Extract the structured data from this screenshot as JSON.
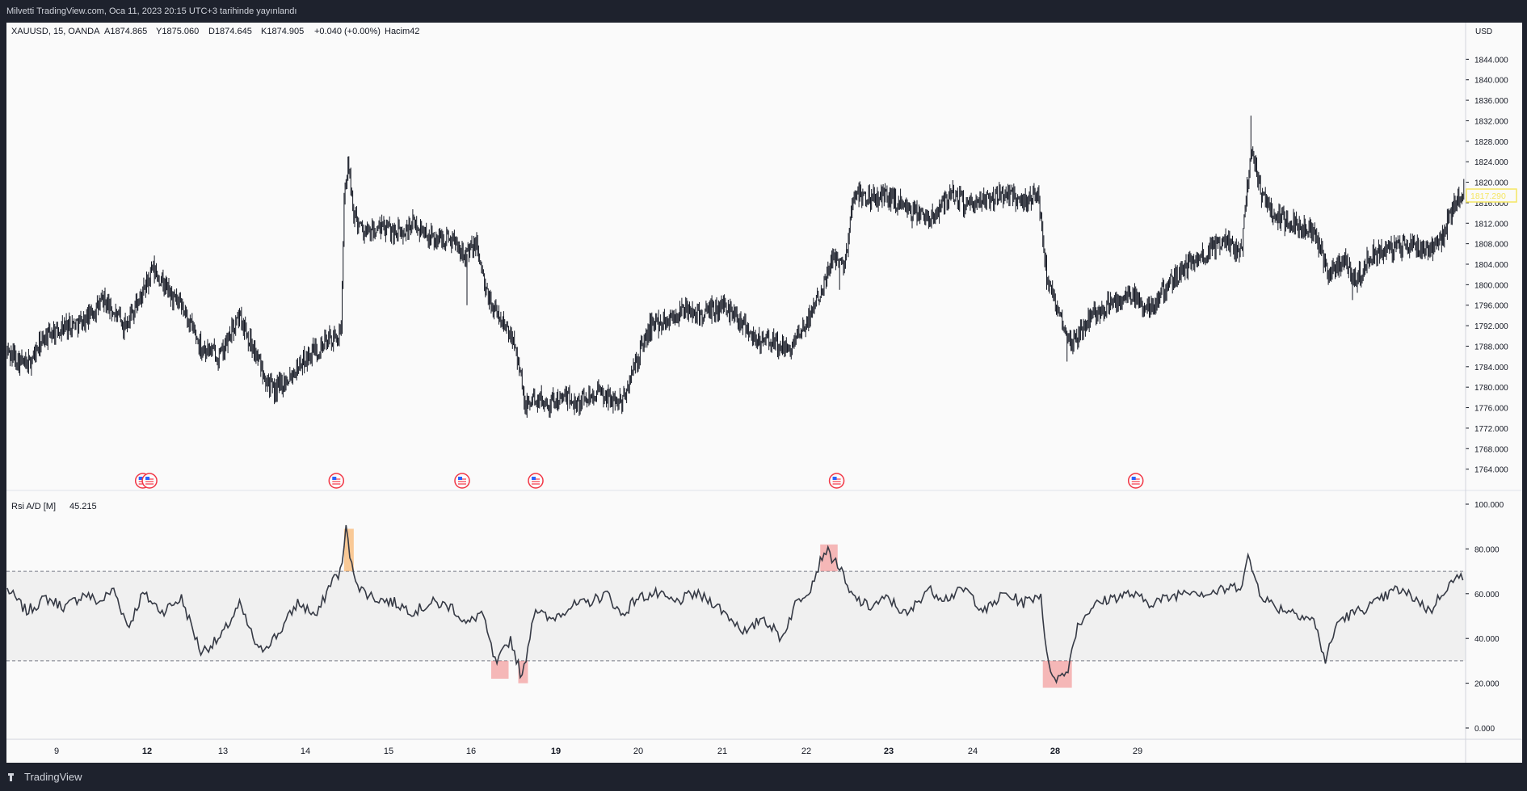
{
  "header": {
    "publish_text": "Milvetti TradingView.com, Oca 11, 2023 20:15 UTC+3 tarihinde yayınlandı"
  },
  "legend": {
    "symbol": "XAUUSD, 15, OANDA",
    "open": "A1874.865",
    "high": "Y1875.060",
    "low": "D1874.645",
    "close": "K1874.905",
    "change": "+0.040 (+0.00%)",
    "volume": "Hacim42"
  },
  "indicator_legend": {
    "name": "Rsi A/D [M]",
    "value": "45.215"
  },
  "price_axis": {
    "currency": "USD",
    "current_price_label": "1817.290"
  },
  "footer": {
    "brand": "TradingView"
  },
  "colors": {
    "candle": "#131722",
    "background": "#fafafa",
    "frame": "#1e222d",
    "rsi_line": "#363a45",
    "overbought": "#f7a043",
    "oversold": "#f08080",
    "current_price": "#f5e663"
  },
  "icon": "us-flag-event-icon",
  "chart_data": [
    {
      "type": "candlestick",
      "ylim": [
        1760,
        1848
      ],
      "y_ticks": [
        "1844.000",
        "1840.000",
        "1836.000",
        "1832.000",
        "1828.000",
        "1824.000",
        "1820.000",
        "1816.000",
        "1812.000",
        "1808.000",
        "1804.000",
        "1800.000",
        "1796.000",
        "1792.000",
        "1788.000",
        "1784.000",
        "1780.000",
        "1776.000",
        "1772.000",
        "1768.000",
        "1764.000"
      ],
      "x_ticks": [
        "9",
        "12",
        "13",
        "14",
        "15",
        "16",
        "19",
        "20",
        "21",
        "22",
        "23",
        "24",
        "28",
        "29"
      ],
      "anchors": [
        [
          0,
          1787
        ],
        [
          20,
          1784
        ],
        [
          40,
          1790
        ],
        [
          60,
          1792
        ],
        [
          80,
          1793
        ],
        [
          100,
          1797
        ],
        [
          120,
          1792
        ],
        [
          140,
          1798
        ],
        [
          150,
          1803
        ],
        [
          165,
          1799
        ],
        [
          185,
          1794
        ],
        [
          200,
          1788
        ],
        [
          220,
          1786
        ],
        [
          240,
          1794
        ],
        [
          260,
          1785
        ],
        [
          275,
          1779
        ],
        [
          290,
          1782
        ],
        [
          310,
          1786
        ],
        [
          330,
          1789
        ],
        [
          345,
          1790
        ],
        [
          348,
          1818
        ],
        [
          352,
          1823
        ],
        [
          358,
          1814
        ],
        [
          370,
          1810
        ],
        [
          390,
          1811
        ],
        [
          410,
          1810
        ],
        [
          420,
          1812
        ],
        [
          440,
          1809
        ],
        [
          460,
          1809
        ],
        [
          475,
          1806
        ],
        [
          485,
          1808
        ],
        [
          495,
          1798
        ],
        [
          510,
          1793
        ],
        [
          525,
          1789
        ],
        [
          535,
          1776
        ],
        [
          545,
          1778
        ],
        [
          560,
          1777
        ],
        [
          575,
          1778
        ],
        [
          590,
          1777
        ],
        [
          605,
          1779
        ],
        [
          620,
          1778
        ],
        [
          635,
          1777
        ],
        [
          650,
          1785
        ],
        [
          665,
          1792
        ],
        [
          680,
          1793
        ],
        [
          700,
          1795
        ],
        [
          720,
          1794
        ],
        [
          740,
          1796
        ],
        [
          760,
          1793
        ],
        [
          775,
          1789
        ],
        [
          790,
          1789
        ],
        [
          805,
          1787
        ],
        [
          820,
          1790
        ],
        [
          840,
          1799
        ],
        [
          855,
          1806
        ],
        [
          865,
          1804
        ],
        [
          875,
          1818
        ],
        [
          895,
          1817
        ],
        [
          915,
          1817
        ],
        [
          935,
          1814
        ],
        [
          955,
          1813
        ],
        [
          975,
          1818
        ],
        [
          995,
          1815
        ],
        [
          1015,
          1817
        ],
        [
          1035,
          1818
        ],
        [
          1050,
          1816
        ],
        [
          1065,
          1818
        ],
        [
          1075,
          1800
        ],
        [
          1085,
          1795
        ],
        [
          1100,
          1789
        ],
        [
          1120,
          1794
        ],
        [
          1140,
          1796
        ],
        [
          1160,
          1798
        ],
        [
          1180,
          1795
        ],
        [
          1200,
          1800
        ],
        [
          1220,
          1804
        ],
        [
          1240,
          1806
        ],
        [
          1260,
          1809
        ],
        [
          1275,
          1806
        ],
        [
          1285,
          1827
        ],
        [
          1295,
          1818
        ],
        [
          1310,
          1813
        ],
        [
          1330,
          1812
        ],
        [
          1350,
          1810
        ],
        [
          1365,
          1802
        ],
        [
          1380,
          1805
        ],
        [
          1395,
          1801
        ],
        [
          1410,
          1806
        ],
        [
          1430,
          1807
        ],
        [
          1450,
          1808
        ],
        [
          1470,
          1807
        ],
        [
          1485,
          1810
        ],
        [
          1495,
          1816
        ],
        [
          1505,
          1818
        ]
      ]
    },
    {
      "type": "line",
      "series": [
        {
          "name": "Rsi A/D [M]"
        }
      ],
      "ylim": [
        0,
        100
      ],
      "levels": [
        70,
        30
      ],
      "y_ticks": [
        "100.000",
        "80.000",
        "60.000",
        "40.000",
        "20.000",
        "0.000"
      ],
      "anchors": [
        [
          0,
          62
        ],
        [
          20,
          52
        ],
        [
          40,
          58
        ],
        [
          60,
          54
        ],
        [
          80,
          60
        ],
        [
          95,
          56
        ],
        [
          110,
          62
        ],
        [
          125,
          45
        ],
        [
          140,
          60
        ],
        [
          160,
          52
        ],
        [
          180,
          58
        ],
        [
          200,
          34
        ],
        [
          220,
          40
        ],
        [
          240,
          55
        ],
        [
          260,
          34
        ],
        [
          280,
          42
        ],
        [
          300,
          56
        ],
        [
          320,
          50
        ],
        [
          335,
          66
        ],
        [
          345,
          70
        ],
        [
          350,
          89
        ],
        [
          356,
          72
        ],
        [
          365,
          62
        ],
        [
          380,
          58
        ],
        [
          400,
          56
        ],
        [
          420,
          52
        ],
        [
          440,
          56
        ],
        [
          460,
          54
        ],
        [
          475,
          46
        ],
        [
          490,
          52
        ],
        [
          505,
          28
        ],
        [
          520,
          40
        ],
        [
          532,
          22
        ],
        [
          545,
          54
        ],
        [
          560,
          48
        ],
        [
          580,
          54
        ],
        [
          600,
          56
        ],
        [
          620,
          60
        ],
        [
          635,
          50
        ],
        [
          650,
          58
        ],
        [
          670,
          60
        ],
        [
          690,
          56
        ],
        [
          710,
          60
        ],
        [
          730,
          56
        ],
        [
          750,
          48
        ],
        [
          765,
          42
        ],
        [
          780,
          50
        ],
        [
          800,
          40
        ],
        [
          815,
          56
        ],
        [
          830,
          63
        ],
        [
          845,
          80
        ],
        [
          860,
          72
        ],
        [
          870,
          60
        ],
        [
          890,
          54
        ],
        [
          910,
          58
        ],
        [
          930,
          50
        ],
        [
          950,
          62
        ],
        [
          970,
          58
        ],
        [
          990,
          62
        ],
        [
          1010,
          52
        ],
        [
          1030,
          60
        ],
        [
          1050,
          56
        ],
        [
          1068,
          60
        ],
        [
          1075,
          28
        ],
        [
          1085,
          22
        ],
        [
          1095,
          25
        ],
        [
          1105,
          45
        ],
        [
          1120,
          54
        ],
        [
          1140,
          58
        ],
        [
          1160,
          60
        ],
        [
          1180,
          56
        ],
        [
          1200,
          58
        ],
        [
          1220,
          62
        ],
        [
          1240,
          60
        ],
        [
          1260,
          62
        ],
        [
          1275,
          64
        ],
        [
          1282,
          76
        ],
        [
          1295,
          60
        ],
        [
          1310,
          54
        ],
        [
          1330,
          52
        ],
        [
          1350,
          48
        ],
        [
          1362,
          30
        ],
        [
          1375,
          48
        ],
        [
          1395,
          52
        ],
        [
          1415,
          56
        ],
        [
          1435,
          62
        ],
        [
          1455,
          58
        ],
        [
          1470,
          52
        ],
        [
          1485,
          62
        ],
        [
          1495,
          66
        ],
        [
          1505,
          68
        ]
      ]
    }
  ]
}
